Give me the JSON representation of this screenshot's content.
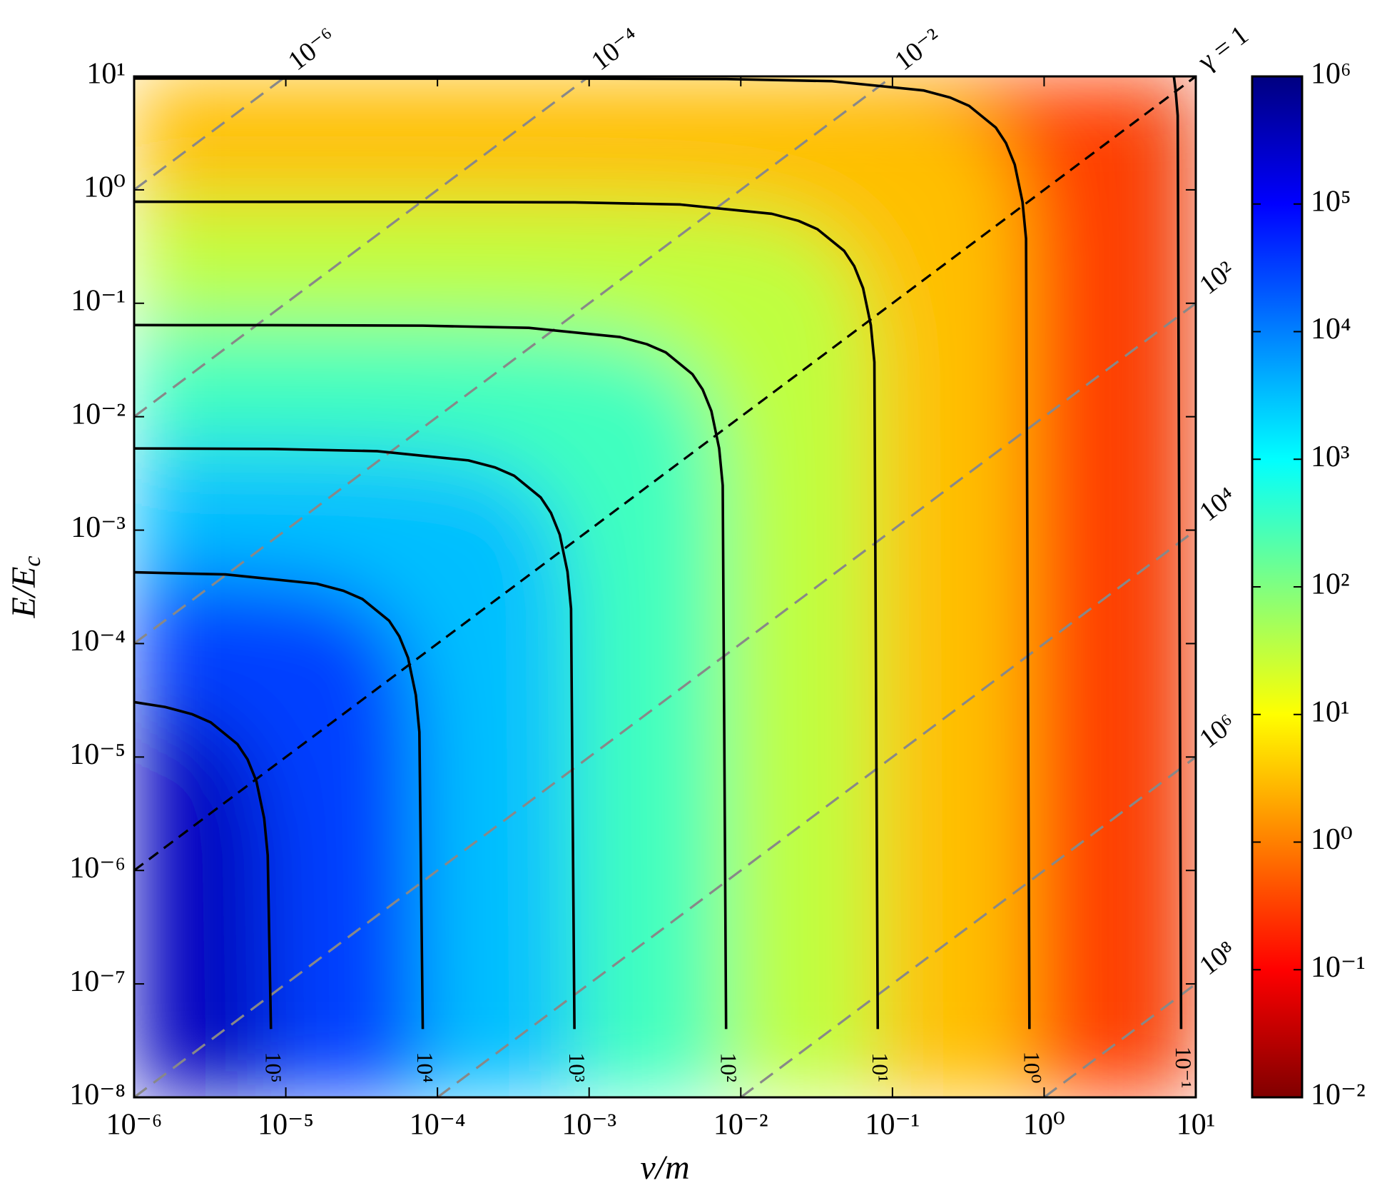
{
  "chart_data": {
    "type": "contour",
    "xlabel": "ν/m",
    "ylabel": {
      "text": "E/E",
      "sub": "c"
    },
    "xscale": "log",
    "yscale": "log",
    "xlim": [
      1e-06,
      10
    ],
    "ylim": [
      1e-08,
      10
    ],
    "xticks": [
      {
        "value": 1e-06,
        "label": "10⁻⁶"
      },
      {
        "value": 1e-05,
        "label": "10⁻⁵"
      },
      {
        "value": 0.0001,
        "label": "10⁻⁴"
      },
      {
        "value": 0.001,
        "label": "10⁻³"
      },
      {
        "value": 0.01,
        "label": "10⁻²"
      },
      {
        "value": 0.1,
        "label": "10⁻¹"
      },
      {
        "value": 1,
        "label": "10⁰"
      },
      {
        "value": 10,
        "label": "10¹"
      }
    ],
    "yticks": [
      {
        "value": 1e-08,
        "label": "10⁻⁸"
      },
      {
        "value": 1e-07,
        "label": "10⁻⁷"
      },
      {
        "value": 1e-06,
        "label": "10⁻⁶"
      },
      {
        "value": 1e-05,
        "label": "10⁻⁵"
      },
      {
        "value": 0.0001,
        "label": "10⁻⁴"
      },
      {
        "value": 0.001,
        "label": "10⁻³"
      },
      {
        "value": 0.01,
        "label": "10⁻²"
      },
      {
        "value": 0.1,
        "label": "10⁻¹"
      },
      {
        "value": 1,
        "label": "10⁰"
      },
      {
        "value": 10,
        "label": "10¹"
      }
    ],
    "colormap": "jet_r",
    "colorbar": {
      "scale": "log",
      "lim": [
        0.01,
        1000000
      ],
      "ticks": [
        {
          "value": 0.01,
          "label": "10⁻²"
        },
        {
          "value": 0.1,
          "label": "10⁻¹"
        },
        {
          "value": 1,
          "label": "10⁰"
        },
        {
          "value": 10,
          "label": "10¹"
        },
        {
          "value": 100,
          "label": "10²"
        },
        {
          "value": 1000,
          "label": "10³"
        },
        {
          "value": 10000,
          "label": "10⁴"
        },
        {
          "value": 100000,
          "label": "10⁵"
        },
        {
          "value": 1000000,
          "label": "10⁶"
        }
      ]
    },
    "contours": [
      {
        "level": 100000,
        "label": "10⁵",
        "x": [
          7.98e-06,
          7.6e-06,
          7.2e-06,
          6.4e-06,
          5.6e-06,
          4.8e-06,
          3.2e-06,
          2.4e-06,
          1.6e-06,
          1e-06
        ],
        "y": [
          4e-08,
          1.36e-06,
          2.88e-06,
          6.12e-06,
          9.51e-06,
          1.3e-05,
          2.02e-05,
          2.39e-05,
          2.76e-05,
          3.05e-05
        ]
      },
      {
        "level": 10000,
        "label": "10⁴",
        "x": [
          8e-05,
          7.6e-05,
          7.2e-05,
          6.4e-05,
          5.6e-05,
          4.8e-05,
          3.2e-05,
          2.4e-05,
          1.6e-05,
          4e-06,
          1e-06
        ],
        "y": [
          4e-08,
          1.66e-05,
          3.52e-05,
          7.48e-05,
          0.000116,
          0.000159,
          0.000247,
          0.000292,
          0.000337,
          0.000407,
          0.000425
        ]
      },
      {
        "level": 1000,
        "label": "10³",
        "x": [
          0.0008,
          0.00076,
          0.00072,
          0.00064,
          0.00056,
          0.00048,
          0.00032,
          0.00024,
          0.00016,
          4e-05,
          8e-06,
          1e-06
        ],
        "y": [
          4e-08,
          0.000203,
          0.00043,
          0.000914,
          0.00142,
          0.00194,
          0.00302,
          0.00357,
          0.00412,
          0.00497,
          0.0052,
          0.00525
        ]
      },
      {
        "level": 100,
        "label": "10²",
        "x": [
          0.008,
          0.0076,
          0.0072,
          0.0064,
          0.0056,
          0.0048,
          0.0032,
          0.0024,
          0.0016,
          0.0004,
          8e-05,
          8e-06,
          1e-06
        ],
        "y": [
          4e-08,
          0.00248,
          0.00526,
          0.0112,
          0.0174,
          0.0237,
          0.0369,
          0.0436,
          0.0504,
          0.0607,
          0.0635,
          0.0641,
          0.0642
        ]
      },
      {
        "level": 10,
        "label": "10¹",
        "x": [
          0.08,
          0.076,
          0.072,
          0.064,
          0.056,
          0.048,
          0.032,
          0.024,
          0.016,
          0.004,
          0.0008,
          8e-05,
          8e-06,
          1e-06
        ],
        "y": [
          4e-08,
          0.0303,
          0.0642,
          0.136,
          0.212,
          0.29,
          0.45,
          0.533,
          0.615,
          0.742,
          0.776,
          0.783,
          0.784,
          0.785
        ]
      },
      {
        "level": 1,
        "label": "10⁰",
        "x": [
          0.8,
          0.76,
          0.72,
          0.64,
          0.56,
          0.48,
          0.32,
          0.24,
          0.16,
          0.04,
          0.008,
          0.0008,
          8e-05,
          1e-06
        ],
        "y": [
          4e-08,
          0.371,
          0.785,
          1.67,
          2.59,
          3.54,
          5.5,
          6.51,
          7.52,
          9.07,
          9.48,
          9.56,
          9.57,
          9.58
        ]
      },
      {
        "level": 0.1,
        "label": "10⁻¹",
        "x": [
          8,
          7.6,
          7.36,
          7.17
        ],
        "y": [
          4e-08,
          4.51,
          7.52,
          10
        ]
      }
    ],
    "guides": [
      {
        "label": "10⁻⁶",
        "color": "#888888",
        "x": [
          1e-06,
          1e-05
        ],
        "y": [
          1,
          10
        ]
      },
      {
        "label": "10⁻⁴",
        "color": "#888888",
        "x": [
          1e-06,
          0.001
        ],
        "y": [
          0.01,
          10
        ]
      },
      {
        "label": "10⁻²",
        "color": "#888888",
        "x": [
          1e-06,
          0.1
        ],
        "y": [
          0.0001,
          10
        ]
      },
      {
        "label": "γ = 1",
        "color": "#000000",
        "x": [
          1e-06,
          10
        ],
        "y": [
          1e-06,
          10
        ]
      },
      {
        "label": "10²",
        "color": "#888888",
        "x": [
          1e-06,
          10
        ],
        "y": [
          1e-08,
          0.1
        ]
      },
      {
        "label": "10⁴",
        "color": "#888888",
        "x": [
          0.0001,
          10
        ],
        "y": [
          1e-08,
          0.001
        ]
      },
      {
        "label": "10⁶",
        "color": "#888888",
        "x": [
          0.01,
          10
        ],
        "y": [
          1e-08,
          1e-05
        ]
      },
      {
        "label": "10⁸",
        "color": "#888888",
        "x": [
          1,
          10
        ],
        "y": [
          1e-08,
          1e-07
        ]
      }
    ]
  }
}
